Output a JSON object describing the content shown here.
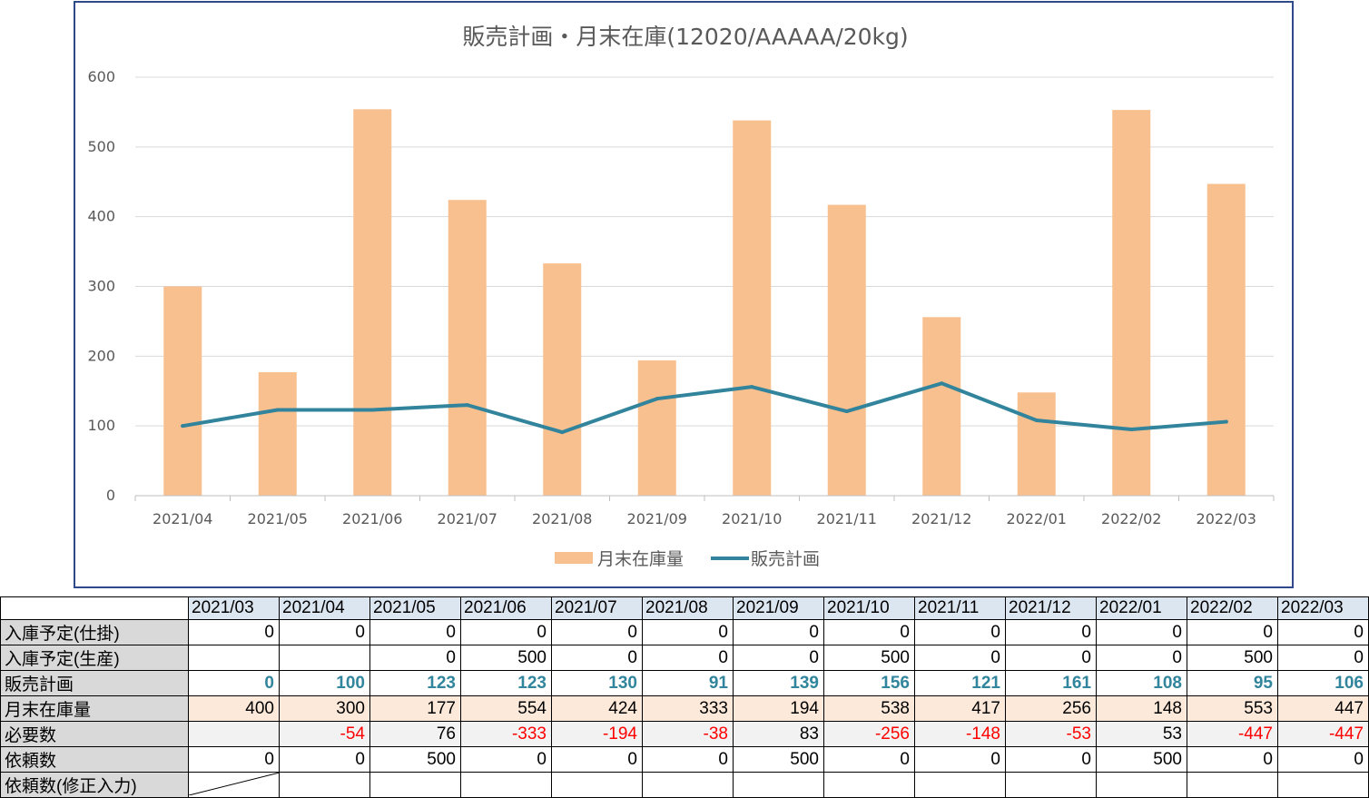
{
  "chart_data": {
    "type": "bar+line",
    "title": "販売計画・月末在庫(12020/AAAAA/20kg)",
    "categories": [
      "2021/04",
      "2021/05",
      "2021/06",
      "2021/07",
      "2021/08",
      "2021/09",
      "2021/10",
      "2021/11",
      "2021/12",
      "2022/01",
      "2022/02",
      "2022/03"
    ],
    "series": [
      {
        "name": "月末在庫量",
        "type": "bar",
        "color": "#f9c08f",
        "values": [
          300,
          177,
          554,
          424,
          333,
          194,
          538,
          417,
          256,
          148,
          553,
          447
        ]
      },
      {
        "name": "販売計画",
        "type": "line",
        "color": "#31849b",
        "values": [
          100,
          123,
          123,
          130,
          91,
          139,
          156,
          121,
          161,
          108,
          95,
          106
        ]
      }
    ],
    "ylim": [
      0,
      600
    ],
    "yticks": [
      "0",
      "100",
      "200",
      "300",
      "400",
      "500",
      "600"
    ],
    "grid": true,
    "legend": "bottom"
  },
  "table": {
    "months": [
      "2021/03",
      "2021/04",
      "2021/05",
      "2021/06",
      "2021/07",
      "2021/08",
      "2021/09",
      "2021/10",
      "2021/11",
      "2021/12",
      "2022/01",
      "2022/02",
      "2022/03"
    ],
    "rows": [
      {
        "label": "入庫予定(仕掛)",
        "cls": "plain",
        "values": [
          "0",
          "0",
          "0",
          "0",
          "0",
          "0",
          "0",
          "0",
          "0",
          "0",
          "0",
          "0",
          "0"
        ]
      },
      {
        "label": "入庫予定(生産)",
        "cls": "plain",
        "values": [
          "",
          "",
          "0",
          "500",
          "0",
          "0",
          "0",
          "500",
          "0",
          "0",
          "0",
          "500",
          "0"
        ]
      },
      {
        "label": "販売計画",
        "cls": "sales",
        "values": [
          "0",
          "100",
          "123",
          "123",
          "130",
          "91",
          "139",
          "156",
          "121",
          "161",
          "108",
          "95",
          "106"
        ]
      },
      {
        "label": "月末在庫量",
        "cls": "stock",
        "values": [
          "400",
          "300",
          "177",
          "554",
          "424",
          "333",
          "194",
          "538",
          "417",
          "256",
          "148",
          "553",
          "447"
        ]
      },
      {
        "label": "必要数",
        "cls": "req",
        "values": [
          "",
          "-54",
          "76",
          "-333",
          "-194",
          "-38",
          "83",
          "-256",
          "-148",
          "-53",
          "53",
          "-447",
          "-447"
        ]
      },
      {
        "label": "依頼数",
        "cls": "plain",
        "values": [
          "0",
          "0",
          "500",
          "0",
          "0",
          "0",
          "500",
          "0",
          "0",
          "0",
          "500",
          "0",
          "0"
        ]
      },
      {
        "label": "依頼数(修正入力)",
        "cls": "edit",
        "values": [
          "",
          "",
          "",
          "",
          "",
          "",
          "",
          "",
          "",
          "",
          "",
          "",
          ""
        ]
      }
    ]
  }
}
